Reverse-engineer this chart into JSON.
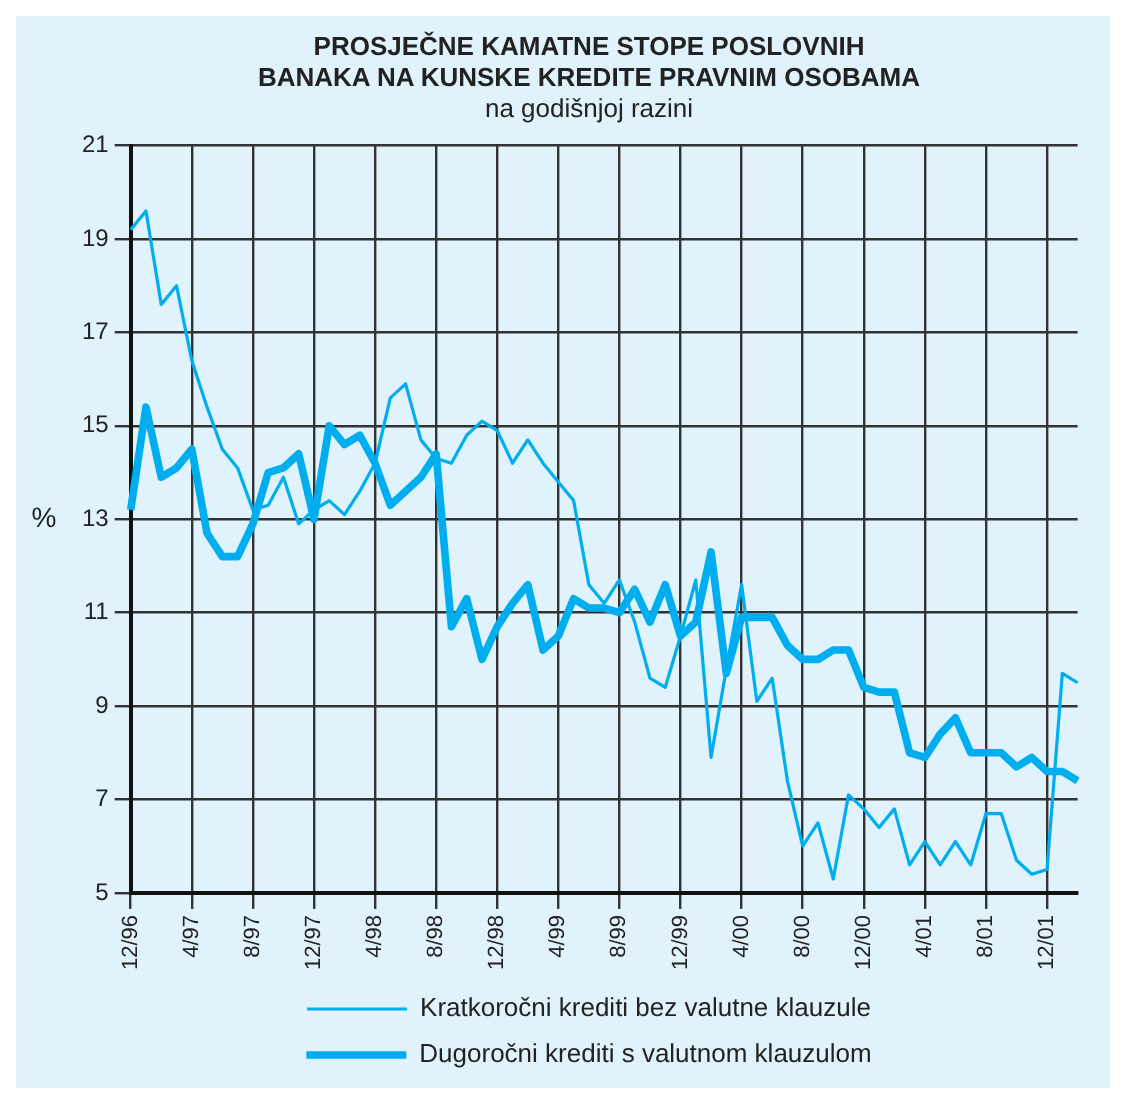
{
  "chart_data": {
    "type": "line",
    "title": "PROSJEČNE KAMATNE STOPE POSLOVNIH\nBANAKA NA KUNSKE KREDITE PRAVNIM OSOBAMA",
    "subtitle": "na godišnjoj razini",
    "ylabel": "%",
    "categories": [
      "12/96",
      null,
      null,
      null,
      "4/97",
      null,
      null,
      null,
      "8/97",
      null,
      null,
      null,
      "12/97",
      null,
      null,
      null,
      "4/98",
      null,
      null,
      null,
      "8/98",
      null,
      null,
      null,
      "12/98",
      null,
      null,
      null,
      "4/99",
      null,
      null,
      null,
      "8/99",
      null,
      null,
      null,
      "12/99",
      null,
      null,
      null,
      "4/00",
      null,
      null,
      null,
      "8/00",
      null,
      null,
      null,
      "12/00",
      null,
      null,
      null,
      "4/01",
      null,
      null,
      null,
      "8/01",
      null,
      null,
      null,
      "12/01",
      null,
      null
    ],
    "series": [
      {
        "name": "Kratkoročni krediti bez valutne klauzule",
        "color": "#00aeef",
        "values": [
          19.2,
          19.6,
          17.6,
          18.0,
          16.4,
          15.4,
          14.5,
          14.1,
          13.2,
          13.3,
          13.9,
          12.9,
          13.2,
          13.4,
          13.1,
          13.6,
          14.2,
          15.6,
          15.9,
          14.7,
          14.3,
          14.2,
          14.8,
          15.1,
          14.9,
          14.2,
          14.7,
          14.2,
          13.8,
          13.4,
          11.6,
          11.2,
          11.7,
          10.8,
          9.6,
          9.4,
          10.5,
          11.7,
          7.9,
          9.8,
          11.6,
          9.1,
          9.6,
          7.4,
          6.0,
          6.5,
          5.3,
          7.1,
          6.8,
          6.4,
          6.8,
          5.6,
          6.1,
          5.6,
          6.1,
          5.6,
          6.7,
          6.7,
          5.7,
          5.4,
          5.5,
          9.7,
          9.5
        ]
      },
      {
        "name": "Dugoročni krediti s valutnom klauzulom",
        "color": "#00aeef",
        "values": [
          13.2,
          15.4,
          13.9,
          14.1,
          14.5,
          12.7,
          12.2,
          12.2,
          12.9,
          14.0,
          14.1,
          14.4,
          13.0,
          15.0,
          14.6,
          14.8,
          14.2,
          13.3,
          13.6,
          13.9,
          14.4,
          10.7,
          11.3,
          10.0,
          10.7,
          11.2,
          11.6,
          10.2,
          10.5,
          11.3,
          11.1,
          11.1,
          11.0,
          11.5,
          10.8,
          11.6,
          10.5,
          10.8,
          12.3,
          9.7,
          10.9,
          10.9,
          10.9,
          10.3,
          10.0,
          10.0,
          10.2,
          10.2,
          9.4,
          9.3,
          9.3,
          8.0,
          7.9,
          8.4,
          8.75,
          8.0,
          8.0,
          8.0,
          7.7,
          7.9,
          7.6,
          7.6,
          7.4
        ]
      }
    ],
    "ylim": [
      5,
      21
    ],
    "yticks": [
      5,
      7,
      9,
      11,
      13,
      15,
      17,
      19,
      21
    ],
    "grid": true,
    "legend": "bottom",
    "marker": "none",
    "line_style": "solid"
  }
}
